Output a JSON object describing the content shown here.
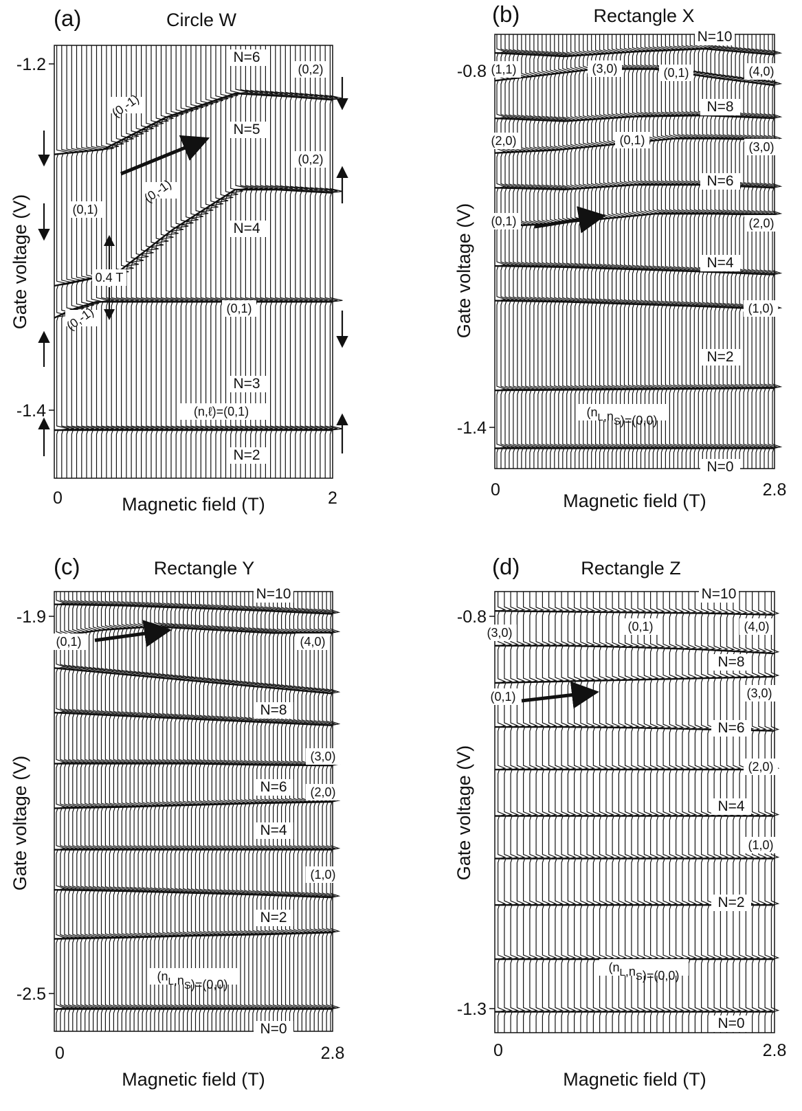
{
  "figure": {
    "panels": [
      {
        "letter": "(a)",
        "title": "Circle W",
        "xlabel": "Magnetic field (T)",
        "ylabel": "Gate voltage (V)",
        "xticks": [
          "0",
          "2"
        ],
        "yticks": [
          "-1.2",
          "-1.4"
        ],
        "labels": [
          {
            "text": "N=6"
          },
          {
            "text": "(0,2)"
          },
          {
            "text": "(0,-1)"
          },
          {
            "text": "N=5"
          },
          {
            "text": "(0,2)"
          },
          {
            "text": "(0,-1)"
          },
          {
            "text": "(0,1)"
          },
          {
            "text": "N=4"
          },
          {
            "text": "0.4 T"
          },
          {
            "text": "(0,-1)"
          },
          {
            "text": "(0,1)"
          },
          {
            "text": "N=3"
          },
          {
            "text": "(n,ℓ)=(0,1)"
          },
          {
            "text": "N=2"
          }
        ]
      },
      {
        "letter": "(b)",
        "title": "Rectangle X",
        "xlabel": "Magnetic field (T)",
        "ylabel": "Gate voltage (V)",
        "xticks": [
          "0",
          "2.8"
        ],
        "yticks": [
          "-0.8",
          "-1.4"
        ],
        "labels": [
          {
            "text": "N=10"
          },
          {
            "text": "(1,1)"
          },
          {
            "text": "(3,0)"
          },
          {
            "text": "(0,1)"
          },
          {
            "text": "(4,0)"
          },
          {
            "text": "N=8"
          },
          {
            "text": "(2,0)"
          },
          {
            "text": "(0,1)"
          },
          {
            "text": "(3,0)"
          },
          {
            "text": "N=6"
          },
          {
            "text": "(0,1)"
          },
          {
            "text": "(2,0)"
          },
          {
            "text": "N=4"
          },
          {
            "text": "(1,0)"
          },
          {
            "text": "N=2"
          },
          {
            "text": "(nL,nS)=(0,0)"
          },
          {
            "text": "N=0"
          }
        ]
      },
      {
        "letter": "(c)",
        "title": "Rectangle Y",
        "xlabel": "Magnetic field (T)",
        "ylabel": "Gate voltage (V)",
        "xticks": [
          "0",
          "2.8"
        ],
        "yticks": [
          "-1.9",
          "-2.5"
        ],
        "labels": [
          {
            "text": "N=10"
          },
          {
            "text": "(0,1)"
          },
          {
            "text": "(4,0)"
          },
          {
            "text": "N=8"
          },
          {
            "text": "(3,0)"
          },
          {
            "text": "N=6"
          },
          {
            "text": "(2,0)"
          },
          {
            "text": "N=4"
          },
          {
            "text": "(1,0)"
          },
          {
            "text": "N=2"
          },
          {
            "text": "(nL,nS)=(0,0)"
          },
          {
            "text": "N=0"
          }
        ]
      },
      {
        "letter": "(d)",
        "title": "Rectangle Z",
        "xlabel": "Magnetic field (T)",
        "ylabel": "Gate voltage (V)",
        "xticks": [
          "0",
          "2.8"
        ],
        "yticks": [
          "-0.8",
          "-1.3"
        ],
        "labels": [
          {
            "text": "N=10"
          },
          {
            "text": "(3,0)"
          },
          {
            "text": "(0,1)"
          },
          {
            "text": "(4,0)"
          },
          {
            "text": "N=8"
          },
          {
            "text": "(0,1)"
          },
          {
            "text": "(3,0)"
          },
          {
            "text": "N=6"
          },
          {
            "text": "(2,0)"
          },
          {
            "text": "N=4"
          },
          {
            "text": "(1,0)"
          },
          {
            "text": "N=2"
          },
          {
            "text": "(nL,nS)=(0,0)"
          },
          {
            "text": "N=0"
          }
        ]
      }
    ]
  },
  "chart_data": [
    {
      "type": "line",
      "title": "Circle W",
      "xlabel": "Magnetic field (T)",
      "ylabel": "Gate voltage (V)",
      "xlim": [
        0,
        2
      ],
      "ylim": [
        -1.45,
        -1.18
      ],
      "grid": false,
      "series": [
        {
          "x": [
            0,
            0.35,
            0.8,
            1.3,
            1.7,
            2.0
          ],
          "y": [
            -1.248,
            -1.245,
            -1.225,
            -1.21,
            -1.212,
            -1.214
          ]
        },
        {
          "x": [
            0.0,
            0.45,
            0.85,
            1.3,
            1.6,
            2.0
          ],
          "y": [
            -1.33,
            -1.322,
            -1.295,
            -1.27,
            -1.27,
            -1.272
          ]
        },
        {
          "x": [
            0.0,
            0.12,
            0.3,
            0.48,
            1.0,
            2.0
          ],
          "y": [
            -1.35,
            -1.345,
            -1.34,
            -1.34,
            -1.34,
            -1.34
          ]
        },
        {
          "x": [
            0.0,
            0.5,
            1.0,
            1.5,
            2.0
          ],
          "y": [
            -1.42,
            -1.42,
            -1.42,
            -1.42,
            -1.42
          ]
        }
      ]
    },
    {
      "type": "line",
      "title": "Rectangle X",
      "xlabel": "Magnetic field (T)",
      "ylabel": "Gate voltage (V)",
      "xlim": [
        0,
        2.8
      ],
      "ylim": [
        -1.48,
        -0.73
      ],
      "grid": false,
      "series": [
        {
          "x": [
            0,
            0.7,
            1.4,
            2.1,
            2.8
          ],
          "y": [
            -0.762,
            -0.768,
            -0.76,
            -0.755,
            -0.765
          ]
        },
        {
          "x": [
            0,
            0.5,
            1.0,
            1.6,
            2.2,
            2.8
          ],
          "y": [
            -0.81,
            -0.8,
            -0.79,
            -0.79,
            -0.805,
            -0.818
          ]
        },
        {
          "x": [
            0,
            0.7,
            1.4,
            2.1,
            2.8
          ],
          "y": [
            -0.875,
            -0.88,
            -0.872,
            -0.87,
            -0.875
          ]
        },
        {
          "x": [
            0,
            0.6,
            1.2,
            1.8,
            2.2,
            2.8
          ],
          "y": [
            -0.935,
            -0.93,
            -0.92,
            -0.91,
            -0.91,
            -0.912
          ]
        },
        {
          "x": [
            0,
            0.7,
            1.4,
            2.1,
            2.8
          ],
          "y": [
            -0.995,
            -0.998,
            -0.99,
            -0.99,
            -0.995
          ]
        },
        {
          "x": [
            0,
            0.5,
            1.0,
            1.6,
            2.2,
            2.8
          ],
          "y": [
            -1.062,
            -1.058,
            -1.05,
            -1.04,
            -1.04,
            -1.042
          ]
        },
        {
          "x": [
            0,
            0.7,
            1.4,
            2.1,
            2.8
          ],
          "y": [
            -1.13,
            -1.132,
            -1.136,
            -1.14,
            -1.145
          ]
        },
        {
          "x": [
            0,
            0.7,
            1.4,
            2.1,
            2.8
          ],
          "y": [
            -1.19,
            -1.192,
            -1.196,
            -1.2,
            -1.205
          ]
        },
        {
          "x": [
            0,
            0.7,
            1.4,
            2.1,
            2.8
          ],
          "y": [
            -1.345,
            -1.344,
            -1.343,
            -1.342,
            -1.341
          ]
        },
        {
          "x": [
            0,
            0.7,
            1.4,
            2.1,
            2.8
          ],
          "y": [
            -1.445,
            -1.445,
            -1.445,
            -1.445,
            -1.445
          ]
        }
      ]
    },
    {
      "type": "line",
      "title": "Rectangle Y",
      "xlabel": "Magnetic field (T)",
      "ylabel": "Gate voltage (V)",
      "xlim": [
        0,
        2.8
      ],
      "ylim": [
        -2.57,
        -1.88
      ],
      "grid": false,
      "series": [
        {
          "x": [
            0,
            0.7,
            1.4,
            2.1,
            2.8
          ],
          "y": [
            -1.9,
            -1.902,
            -1.906,
            -1.91,
            -1.915
          ]
        },
        {
          "x": [
            0,
            0.5,
            1.0,
            1.6,
            2.2,
            2.8
          ],
          "y": [
            -1.95,
            -1.94,
            -1.935,
            -1.94,
            -1.945,
            -1.945
          ]
        },
        {
          "x": [
            0,
            0.7,
            1.4,
            2.1,
            2.8
          ],
          "y": [
            -2.0,
            -2.01,
            -2.02,
            -2.03,
            -2.04
          ]
        },
        {
          "x": [
            0,
            0.7,
            1.4,
            2.1,
            2.8
          ],
          "y": [
            -2.07,
            -2.075,
            -2.08,
            -2.085,
            -2.09
          ]
        },
        {
          "x": [
            0,
            0.7,
            1.4,
            2.1,
            2.8
          ],
          "y": [
            -2.15,
            -2.15,
            -2.15,
            -2.152,
            -2.153
          ]
        },
        {
          "x": [
            0,
            0.7,
            1.4,
            2.1,
            2.8
          ],
          "y": [
            -2.22,
            -2.218,
            -2.215,
            -2.212,
            -2.21
          ]
        },
        {
          "x": [
            0,
            0.7,
            1.4,
            2.1,
            2.8
          ],
          "y": [
            -2.285,
            -2.285,
            -2.285,
            -2.285,
            -2.285
          ]
        },
        {
          "x": [
            0,
            0.7,
            1.4,
            2.1,
            2.8
          ],
          "y": [
            -2.348,
            -2.35,
            -2.353,
            -2.356,
            -2.36
          ]
        },
        {
          "x": [
            0,
            0.7,
            1.4,
            2.1,
            2.8
          ],
          "y": [
            -2.425,
            -2.423,
            -2.42,
            -2.418,
            -2.415
          ]
        },
        {
          "x": [
            0,
            0.7,
            1.4,
            2.1,
            2.8
          ],
          "y": [
            -2.535,
            -2.535,
            -2.535,
            -2.535,
            -2.535
          ]
        }
      ]
    },
    {
      "type": "line",
      "title": "Rectangle Z",
      "xlabel": "Magnetic field (T)",
      "ylabel": "Gate voltage (V)",
      "xlim": [
        0,
        2.8
      ],
      "ylim": [
        -1.33,
        -0.76
      ],
      "grid": false,
      "series": [
        {
          "x": [
            0,
            0.7,
            1.4,
            2.1,
            2.8
          ],
          "y": [
            -0.785,
            -0.786,
            -0.787,
            -0.788,
            -0.79
          ]
        },
        {
          "x": [
            0,
            0.7,
            1.4,
            2.1,
            2.8
          ],
          "y": [
            -0.83,
            -0.83,
            -0.832,
            -0.835,
            -0.84
          ]
        },
        {
          "x": [
            0,
            0.7,
            1.4,
            2.1,
            2.8
          ],
          "y": [
            -0.878,
            -0.876,
            -0.874,
            -0.872,
            -0.87
          ]
        },
        {
          "x": [
            0,
            0.7,
            1.4,
            2.1,
            2.8
          ],
          "y": [
            -0.935,
            -0.935,
            -0.936,
            -0.938,
            -0.94
          ]
        },
        {
          "x": [
            0,
            0.7,
            1.4,
            2.1,
            2.8
          ],
          "y": [
            -0.99,
            -0.99,
            -0.99,
            -0.99,
            -0.99
          ]
        },
        {
          "x": [
            0,
            0.7,
            1.4,
            2.1,
            2.8
          ],
          "y": [
            -1.05,
            -1.05,
            -1.05,
            -1.05,
            -1.05
          ]
        },
        {
          "x": [
            0,
            0.7,
            1.4,
            2.1,
            2.8
          ],
          "y": [
            -1.105,
            -1.105,
            -1.105,
            -1.105,
            -1.105
          ]
        },
        {
          "x": [
            0,
            0.7,
            1.4,
            2.1,
            2.8
          ],
          "y": [
            -1.165,
            -1.165,
            -1.165,
            -1.165,
            -1.165
          ]
        },
        {
          "x": [
            0,
            0.7,
            1.4,
            2.1,
            2.8
          ],
          "y": [
            -1.235,
            -1.235,
            -1.235,
            -1.235,
            -1.235
          ]
        },
        {
          "x": [
            0,
            0.7,
            1.4,
            2.1,
            2.8
          ],
          "y": [
            -1.303,
            -1.303,
            -1.303,
            -1.303,
            -1.303
          ]
        }
      ]
    }
  ]
}
